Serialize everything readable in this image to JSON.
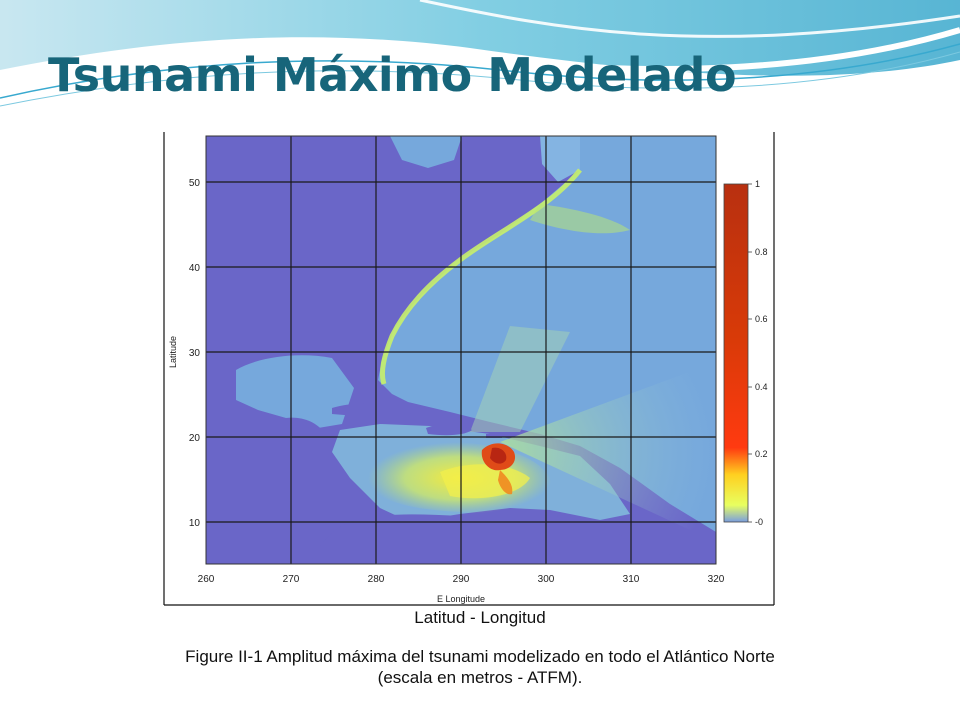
{
  "slide": {
    "title": "Tsunami Máximo Modelado"
  },
  "map": {
    "xlabel": "E Longitude",
    "ylabel": "Latitude",
    "x_ticks": [
      "260",
      "270",
      "280",
      "290",
      "300",
      "310",
      "320"
    ],
    "y_ticks": [
      "10",
      "20",
      "30",
      "40",
      "50"
    ],
    "colorbar_ticks": [
      "1",
      "0.8",
      "0.6",
      "0.4",
      "0.2",
      "-0"
    ],
    "colors": {
      "land": "#6a66c8",
      "ocean": "#76a8dc",
      "shelf": "#c8f06a",
      "peak": "#d42a10"
    }
  },
  "caption": {
    "sub": "Latitud - Longitud",
    "line1": "Figure II-1 Amplitud máxima del tsunami modelizado en todo el Atlántico Norte",
    "line2": "(escala en metros - ATFM)."
  }
}
